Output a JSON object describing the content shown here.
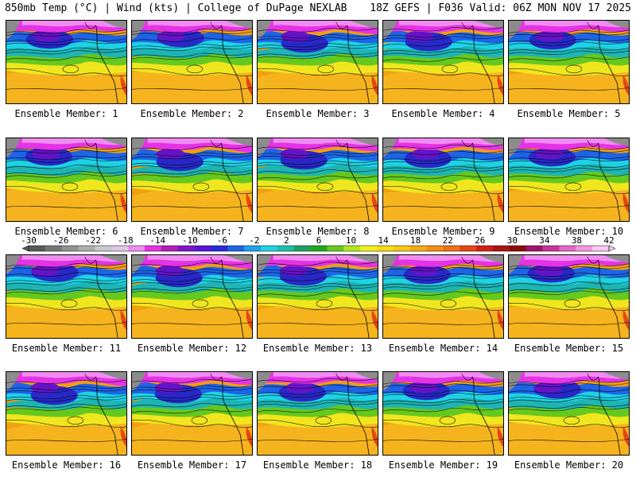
{
  "header": {
    "left": "850mb Temp (°C) | Wind (kts) | College of DuPage NEXLAB",
    "right": "18Z GEFS | F036 Valid: 06Z MON NOV 17 2025"
  },
  "caption_prefix": "Ensemble Member: ",
  "members": [
    {
      "label": "Ensemble Member: 1"
    },
    {
      "label": "Ensemble Member: 2"
    },
    {
      "label": "Ensemble Member: 3"
    },
    {
      "label": "Ensemble Member: 4"
    },
    {
      "label": "Ensemble Member: 5"
    },
    {
      "label": "Ensemble Member: 6"
    },
    {
      "label": "Ensemble Member: 7"
    },
    {
      "label": "Ensemble Member: 8"
    },
    {
      "label": "Ensemble Member: 9"
    },
    {
      "label": "Ensemble Member: 10"
    },
    {
      "label": "Ensemble Member: 11"
    },
    {
      "label": "Ensemble Member: 12"
    },
    {
      "label": "Ensemble Member: 13"
    },
    {
      "label": "Ensemble Member: 14"
    },
    {
      "label": "Ensemble Member: 15"
    },
    {
      "label": "Ensemble Member: 16"
    },
    {
      "label": "Ensemble Member: 17"
    },
    {
      "label": "Ensemble Member: 18"
    },
    {
      "label": "Ensemble Member: 19"
    },
    {
      "label": "Ensemble Member: 20"
    }
  ],
  "colorbar": {
    "labels": [
      "-30",
      "-26",
      "-22",
      "-18",
      "-14",
      "-10",
      "-6",
      "-2",
      "2",
      "6",
      "10",
      "14",
      "18",
      "22",
      "26",
      "30",
      "34",
      "38",
      "42"
    ],
    "colors": [
      "#5a5a5a",
      "#767676",
      "#919191",
      "#adadad",
      "#c8c8c8",
      "#dcc8e6",
      "#f08cf0",
      "#e632e6",
      "#b41eb4",
      "#8214c8",
      "#5a14dc",
      "#2828dc",
      "#1e64e6",
      "#1ea0f0",
      "#1ed2e6",
      "#1ebeaa",
      "#1ea064",
      "#1eaa1e",
      "#64c81e",
      "#b4e61e",
      "#f0f01e",
      "#f5dc14",
      "#f5c814",
      "#f5aa14",
      "#f58c14",
      "#f06e14",
      "#e64614",
      "#d21e14",
      "#aa1414",
      "#8c0a0a",
      "#a0146e",
      "#c8329b",
      "#e664c8",
      "#f596e1",
      "#fac8f0"
    ]
  },
  "map_palette": {
    "ocean_warm": "#f0a010",
    "ocean_orange": "#f5b41e",
    "yellow": "#f0e61e",
    "green": "#64c81e",
    "teal": "#1eb4b4",
    "cyan": "#1ed2e6",
    "blue": "#1e64e6",
    "navy": "#2828c8",
    "violet": "#6414c8",
    "magenta": "#e632e6",
    "pink": "#f08cf0",
    "gray": "#8c8c8c",
    "red": "#e64614"
  }
}
